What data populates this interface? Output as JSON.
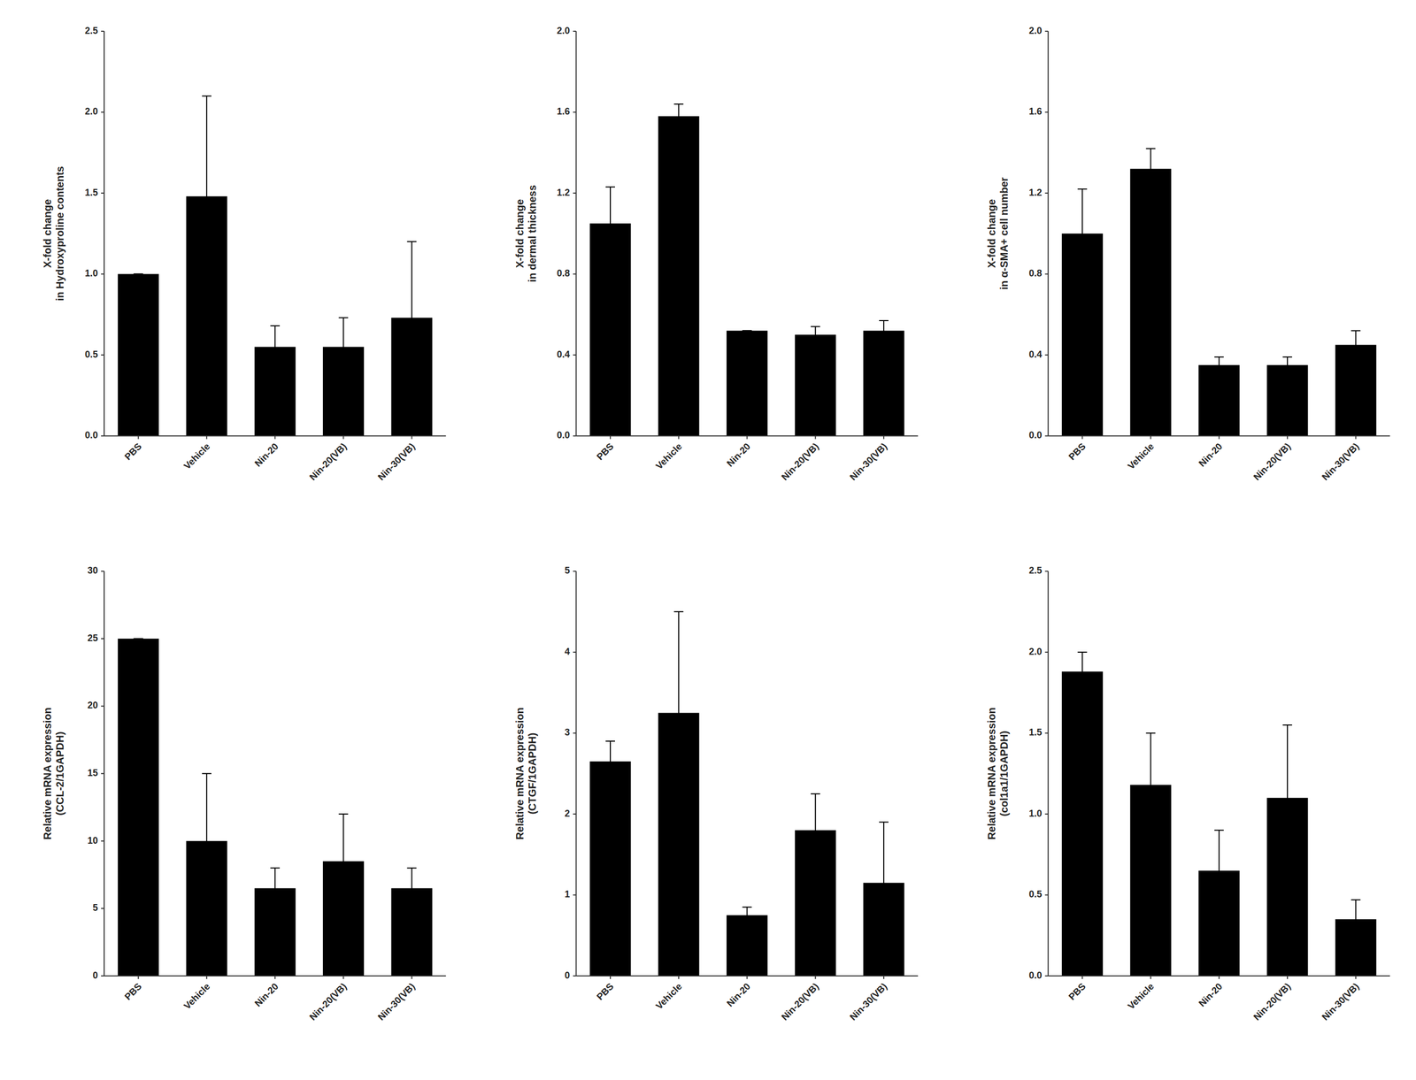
{
  "chart_data": [
    {
      "type": "bar",
      "ylabel": "X-fold change\nin Hydroxyproline contents",
      "categories": [
        "PBS",
        "Vehicle",
        "Nin-20",
        "Nin-20(VB)",
        "Nin-30(VB)"
      ],
      "values": [
        1.0,
        1.48,
        0.55,
        0.55,
        0.73
      ],
      "errors": [
        0.0,
        0.62,
        0.13,
        0.18,
        0.47
      ],
      "color": "#000000",
      "ylim": [
        0,
        2.5
      ],
      "yticks": [
        {
          "value": 0.0,
          "label": "0.0"
        },
        0.5,
        {
          "value": 1.0,
          "label": "1.0"
        },
        1.5,
        {
          "value": 2.0,
          "label": "2.0"
        },
        2.5
      ],
      "grid": false
    },
    {
      "type": "bar",
      "ylabel": "X-fold change\nin dermal thickness",
      "categories": [
        "PBS",
        "Vehicle",
        "Nin-20",
        "Nin-20(VB)",
        "Nin-30(VB)"
      ],
      "values": [
        1.05,
        1.58,
        0.52,
        0.5,
        0.52
      ],
      "errors": [
        0.18,
        0.06,
        0.0,
        0.04,
        0.05
      ],
      "color": "#000000",
      "ylim": [
        0,
        2.0
      ],
      "yticks": [
        {
          "value": 0.0,
          "label": "0.0"
        },
        0.4,
        0.8,
        1.2,
        1.6,
        {
          "value": 2.0,
          "label": "2.0"
        }
      ],
      "grid": false
    },
    {
      "type": "bar",
      "ylabel": "X-fold change\nin α-SMA+ cell number",
      "categories": [
        "PBS",
        "Vehicle",
        "Nin-20",
        "Nin-20(VB)",
        "Nin-30(VB)"
      ],
      "values": [
        1.0,
        1.32,
        0.35,
        0.35,
        0.45
      ],
      "errors": [
        0.22,
        0.1,
        0.04,
        0.04,
        0.07
      ],
      "color": "#000000",
      "ylim": [
        0,
        2.0
      ],
      "yticks": [
        {
          "value": 0.0,
          "label": "0.0"
        },
        0.4,
        0.8,
        1.2,
        1.6,
        {
          "value": 2.0,
          "label": "2.0"
        }
      ],
      "grid": false
    },
    {
      "type": "bar",
      "ylabel": "Relative mRNA expression\n(CCL-2/1GAPDH)",
      "categories": [
        "PBS",
        "Vehicle",
        "Nin-20",
        "Nin-20(VB)",
        "Nin-30(VB)"
      ],
      "values": [
        25.0,
        10.0,
        6.5,
        8.5,
        6.5
      ],
      "errors": [
        0.0,
        5.0,
        1.5,
        3.5,
        1.5
      ],
      "color": "#000000",
      "ylim": [
        0,
        30
      ],
      "yticks": [
        0,
        5,
        10,
        15,
        20,
        25,
        30
      ],
      "grid": false
    },
    {
      "type": "bar",
      "ylabel": "Relative mRNA expression\n(CTGF/1GAPDH)",
      "categories": [
        "PBS",
        "Vehicle",
        "Nin-20",
        "Nin-20(VB)",
        "Nin-30(VB)"
      ],
      "values": [
        2.65,
        3.25,
        0.75,
        1.8,
        1.15
      ],
      "errors": [
        0.25,
        1.25,
        0.1,
        0.45,
        0.75
      ],
      "color": "#000000",
      "ylim": [
        0,
        5
      ],
      "yticks": [
        0,
        1,
        2,
        3,
        4,
        5
      ],
      "grid": false
    },
    {
      "type": "bar",
      "ylabel": "Relative mRNA expression\n(col1a1/1GAPDH)",
      "categories": [
        "PBS",
        "Vehicle",
        "Nin-20",
        "Nin-20(VB)",
        "Nin-30(VB)"
      ],
      "values": [
        1.88,
        1.18,
        0.65,
        1.1,
        0.35
      ],
      "errors": [
        0.12,
        0.32,
        0.25,
        0.45,
        0.12
      ],
      "color": "#000000",
      "ylim": [
        0,
        2.5
      ],
      "yticks": [
        {
          "value": 0.0,
          "label": "0.0"
        },
        0.5,
        {
          "value": 1.0,
          "label": "1.0"
        },
        1.5,
        {
          "value": 2.0,
          "label": "2.0"
        },
        2.5
      ],
      "grid": false
    }
  ]
}
